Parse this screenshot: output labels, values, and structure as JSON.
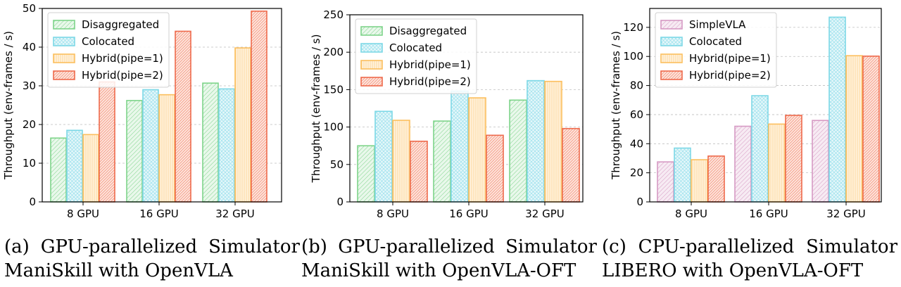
{
  "chart_data": [
    {
      "type": "bar",
      "title": "",
      "xlabel": "",
      "ylabel": "Throughput (env-frames / s)",
      "categories": [
        "8 GPU",
        "16 GPU",
        "32 GPU"
      ],
      "ylim": [
        0,
        50
      ],
      "yticks": [
        0,
        10,
        20,
        30,
        40,
        50
      ],
      "legend_position": "top-left",
      "grid": true,
      "series": [
        {
          "name": "Disaggregated",
          "values": [
            16.5,
            26.2,
            30.7
          ],
          "color": "#7ed48a",
          "fill": "#e9f8eb",
          "pattern": "diag"
        },
        {
          "name": "Colocated",
          "values": [
            18.5,
            29.0,
            29.2
          ],
          "color": "#7dd8e6",
          "fill": "#e6f7fa",
          "pattern": "cross"
        },
        {
          "name": "Hybrid(pipe=1)",
          "values": [
            17.4,
            27.7,
            39.8
          ],
          "color": "#fcbf5e",
          "fill": "#fff3df",
          "pattern": "vert"
        },
        {
          "name": "Hybrid(pipe=2)",
          "values": [
            31.0,
            44.1,
            49.3
          ],
          "color": "#ee6a4c",
          "fill": "#fde4dc",
          "pattern": "dense"
        }
      ],
      "caption_line1": "(a)  GPU-parallelized  Simulator",
      "caption_line2": "ManiSkill with OpenVLA"
    },
    {
      "type": "bar",
      "title": "",
      "xlabel": "",
      "ylabel": "Throughput (env-frames / s)",
      "categories": [
        "8 GPU",
        "16 GPU",
        "32 GPU"
      ],
      "ylim": [
        0,
        250
      ],
      "yticks": [
        0,
        50,
        100,
        150,
        200,
        250
      ],
      "legend_position": "top-left",
      "grid": true,
      "series": [
        {
          "name": "Disaggregated",
          "values": [
            75,
            108,
            136
          ],
          "color": "#7ed48a",
          "fill": "#e9f8eb",
          "pattern": "diag"
        },
        {
          "name": "Colocated",
          "values": [
            121,
            148,
            162
          ],
          "color": "#7dd8e6",
          "fill": "#e6f7fa",
          "pattern": "cross"
        },
        {
          "name": "Hybrid(pipe=1)",
          "values": [
            109,
            139,
            161
          ],
          "color": "#fcbf5e",
          "fill": "#fff3df",
          "pattern": "vert"
        },
        {
          "name": "Hybrid(pipe=2)",
          "values": [
            81,
            89,
            98
          ],
          "color": "#ee6a4c",
          "fill": "#fde4dc",
          "pattern": "dense"
        }
      ],
      "caption_line1": "(b)  GPU-parallelized  Simulator",
      "caption_line2": "ManiSkill with OpenVLA-OFT"
    },
    {
      "type": "bar",
      "title": "",
      "xlabel": "",
      "ylabel": "Throughput (env-frames / s)",
      "categories": [
        "8 GPU",
        "16 GPU",
        "32 GPU"
      ],
      "ylim": [
        0,
        133
      ],
      "yticks": [
        0,
        20,
        40,
        60,
        80,
        100,
        120
      ],
      "legend_position": "top-left",
      "grid": true,
      "series": [
        {
          "name": "SimpleVLA",
          "values": [
            27.5,
            52.0,
            56.0
          ],
          "color": "#d69ac4",
          "fill": "#f7ebf3",
          "pattern": "diag"
        },
        {
          "name": "Colocated",
          "values": [
            37.0,
            73.0,
            127.0
          ],
          "color": "#7dd8e6",
          "fill": "#e6f7fa",
          "pattern": "cross"
        },
        {
          "name": "Hybrid(pipe=1)",
          "values": [
            29.0,
            53.5,
            100.5
          ],
          "color": "#fcbf5e",
          "fill": "#fff3df",
          "pattern": "vert"
        },
        {
          "name": "Hybrid(pipe=2)",
          "values": [
            31.5,
            59.5,
            100.2
          ],
          "color": "#ee6a4c",
          "fill": "#fde4dc",
          "pattern": "dense"
        }
      ],
      "caption_line1": "(c)  CPU-parallelized  Simulator",
      "caption_line2": "LIBERO with OpenVLA-OFT"
    }
  ]
}
